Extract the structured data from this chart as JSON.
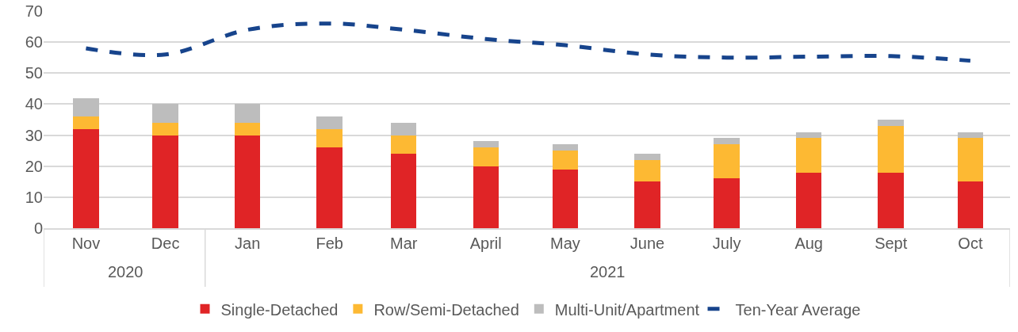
{
  "chart_data": {
    "type": "bar",
    "stacked": true,
    "x": [
      "2020-11",
      "2020-12",
      "2021-01",
      "2021-02",
      "2021-03",
      "2021-04",
      "2021-05",
      "2021-06",
      "2021-07",
      "2021-08",
      "2021-09",
      "2021-10"
    ],
    "xlim": [
      "2020-10-16",
      "2021-10-16"
    ],
    "xticks": [
      {
        "value": "2020-11",
        "label": "Nov"
      },
      {
        "value": "2020-12",
        "label": "Dec"
      },
      {
        "value": "2021-01",
        "label": "Jan"
      },
      {
        "value": "2021-02",
        "label": "Feb"
      },
      {
        "value": "2021-03",
        "label": "Mar"
      },
      {
        "value": "2021-04",
        "label": "April"
      },
      {
        "value": "2021-05",
        "label": "May"
      },
      {
        "value": "2021-06",
        "label": "June"
      },
      {
        "value": "2021-07",
        "label": "July"
      },
      {
        "value": "2021-08",
        "label": "Aug"
      },
      {
        "value": "2021-09",
        "label": "Sept"
      },
      {
        "value": "2021-10",
        "label": "Oct"
      }
    ],
    "series": [
      {
        "name": "Single-Detached",
        "color": "#e02426",
        "values": [
          32,
          30,
          30,
          26,
          24,
          20,
          19,
          15,
          16,
          18,
          18,
          15
        ]
      },
      {
        "name": "Row/Semi-Detached",
        "color": "#fdb933",
        "values": [
          4,
          4,
          4,
          6,
          6,
          6,
          6,
          7,
          11,
          11,
          15,
          14
        ]
      },
      {
        "name": "Multi-Unit/Apartment",
        "color": "#bdbdbd",
        "values": [
          6,
          6,
          6,
          4,
          4,
          2,
          2,
          2,
          2,
          2,
          2,
          2
        ]
      },
      {
        "name": "Ten-Year Average",
        "type": "line",
        "color": "#17448c",
        "line_style": "dashed",
        "values": [
          58,
          56,
          64,
          66,
          64,
          61,
          59,
          56,
          55,
          55.3,
          55.5,
          54
        ]
      }
    ],
    "annotations": [
      "2020",
      "2021"
    ],
    "ylim": [
      0,
      70
    ],
    "yticks": [
      0,
      10,
      20,
      30,
      40,
      50,
      60,
      70
    ],
    "grid": "y",
    "legend": "bottom"
  }
}
